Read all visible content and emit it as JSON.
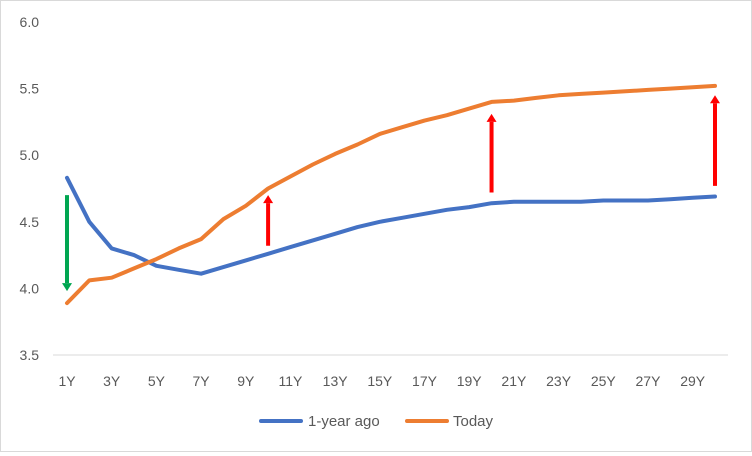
{
  "chart_data": {
    "type": "line",
    "title": "",
    "xlabel": "",
    "ylabel": "",
    "x": [
      "1Y",
      "2Y",
      "3Y",
      "4Y",
      "5Y",
      "6Y",
      "7Y",
      "8Y",
      "9Y",
      "10Y",
      "11Y",
      "12Y",
      "13Y",
      "14Y",
      "15Y",
      "16Y",
      "17Y",
      "18Y",
      "19Y",
      "20Y",
      "21Y",
      "22Y",
      "23Y",
      "24Y",
      "25Y",
      "26Y",
      "27Y",
      "28Y",
      "29Y",
      "30Y"
    ],
    "x_tick_labels": [
      "1Y",
      "3Y",
      "5Y",
      "7Y",
      "9Y",
      "11Y",
      "13Y",
      "15Y",
      "17Y",
      "19Y",
      "21Y",
      "23Y",
      "25Y",
      "27Y",
      "29Y"
    ],
    "ylim": [
      3.5,
      6.0
    ],
    "y_ticks": [
      "3.5",
      "4.0",
      "4.5",
      "5.0",
      "5.5",
      "6.0"
    ],
    "grid": false,
    "legend_position": "bottom",
    "series": [
      {
        "name": "1-year ago",
        "color": "#4472C4",
        "values": [
          4.83,
          4.5,
          4.3,
          4.25,
          4.17,
          4.14,
          4.11,
          4.16,
          4.21,
          4.26,
          4.31,
          4.36,
          4.41,
          4.46,
          4.5,
          4.53,
          4.56,
          4.59,
          4.61,
          4.64,
          4.65,
          4.65,
          4.65,
          4.65,
          4.66,
          4.66,
          4.66,
          4.67,
          4.68,
          4.69
        ]
      },
      {
        "name": "Today",
        "color": "#ED7D31",
        "values": [
          3.89,
          4.06,
          4.08,
          4.15,
          4.22,
          4.3,
          4.37,
          4.52,
          4.62,
          4.75,
          4.84,
          4.93,
          5.01,
          5.08,
          5.16,
          5.21,
          5.26,
          5.3,
          5.35,
          5.4,
          5.41,
          5.43,
          5.45,
          5.46,
          5.47,
          5.48,
          5.49,
          5.5,
          5.51,
          5.52
        ]
      }
    ],
    "annotations": [
      {
        "kind": "arrow-down",
        "color": "#00A651",
        "x": "1Y",
        "from": 4.7,
        "to": 3.98
      },
      {
        "kind": "arrow-up",
        "color": "#FF0000",
        "x": "10Y",
        "from": 4.32,
        "to": 4.7
      },
      {
        "kind": "arrow-up",
        "color": "#FF0000",
        "x": "20Y",
        "from": 4.72,
        "to": 5.31
      },
      {
        "kind": "arrow-up",
        "color": "#FF0000",
        "x": "30Y",
        "from": 4.77,
        "to": 5.45
      }
    ]
  }
}
